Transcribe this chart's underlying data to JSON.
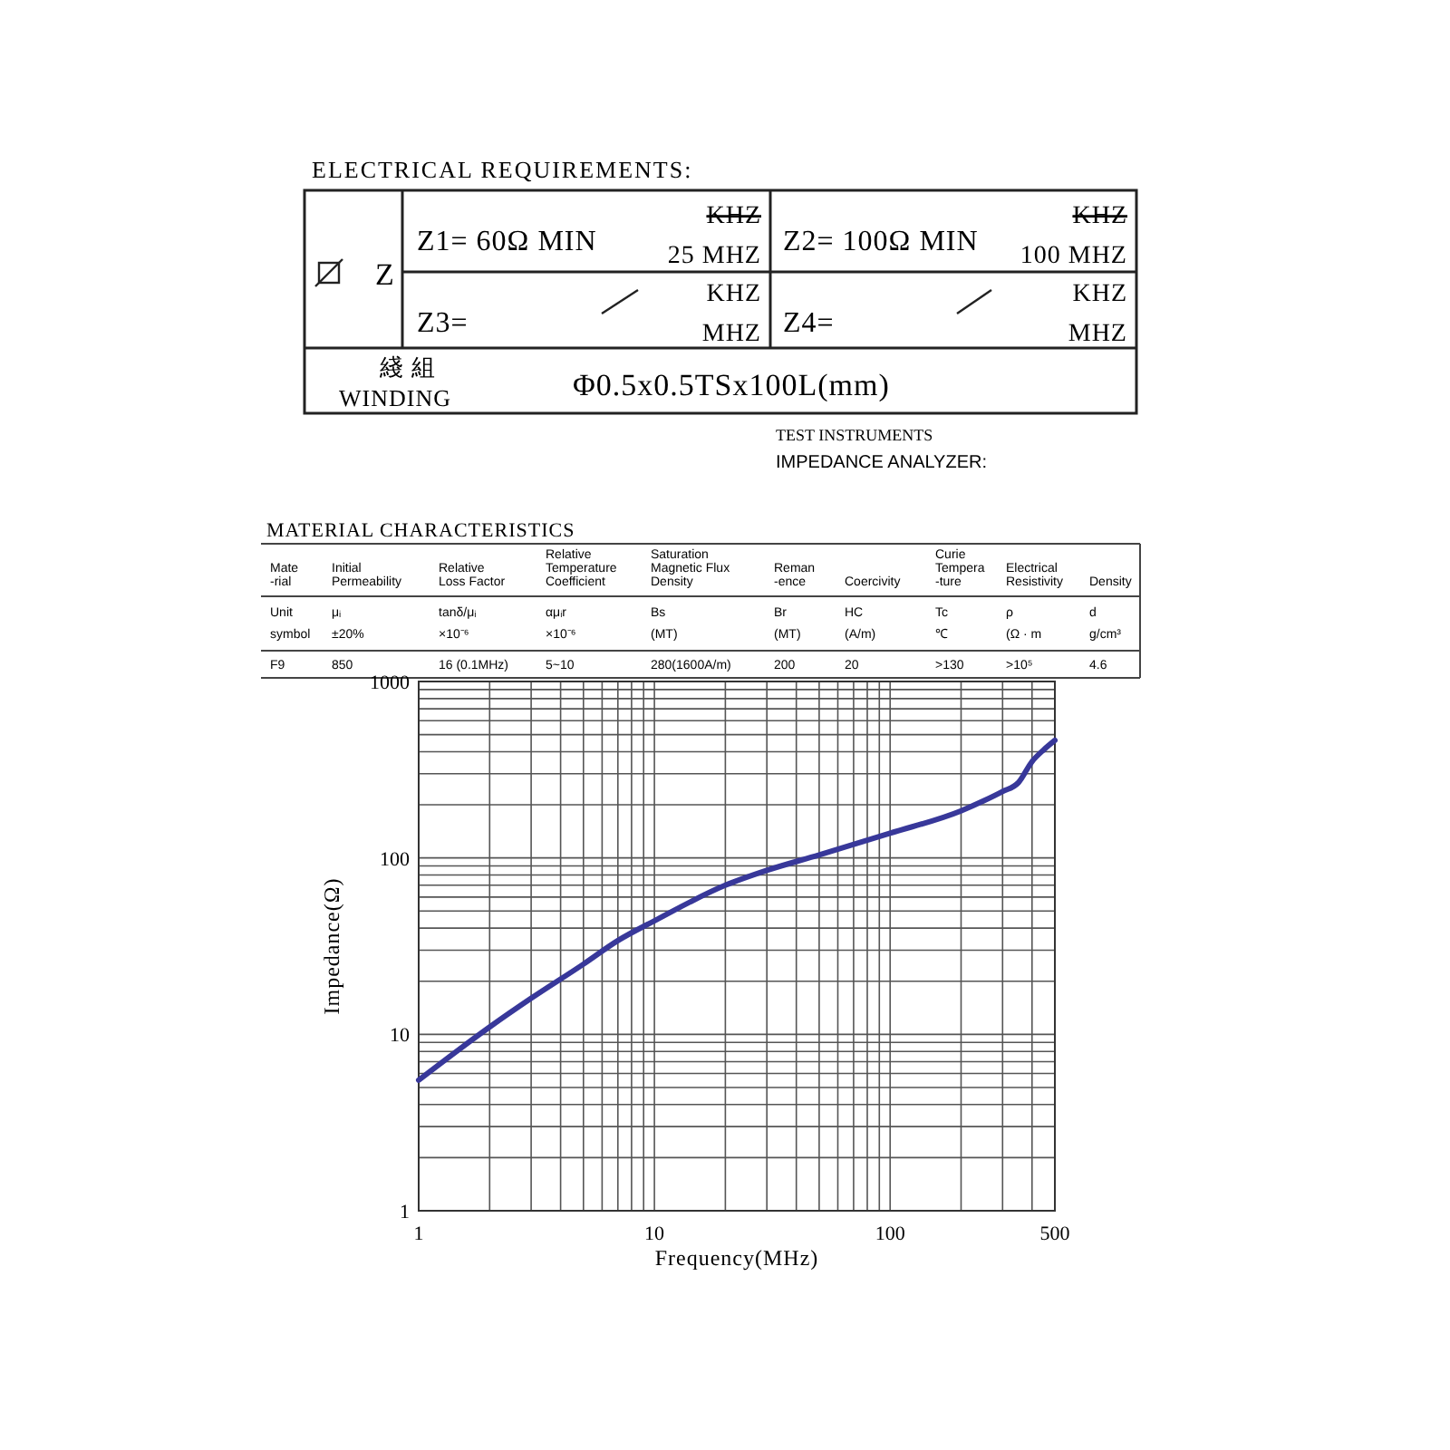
{
  "chart_data": [
    {
      "type": "other",
      "title": "ELECTRICAL REQUIREMENTS:",
      "annotations": [
        "Z",
        "Z1= 60Ω MIN",
        "KHZ",
        "25 MHZ",
        "Z2= 100Ω MIN",
        "KHZ",
        "100 MHZ",
        "Z3=",
        "KHZ",
        "MHZ",
        "Z4=",
        "KHZ",
        "MHZ",
        "綫 組",
        "WINDING",
        "Φ0.5x0.5TSx100L(mm)"
      ]
    },
    {
      "type": "other",
      "title": "TEST INSTRUMENTS",
      "annotations": [
        "IMPEDANCE ANALYZER:"
      ]
    },
    {
      "type": "other",
      "title": "MATERIAL CHARACTERISTICS",
      "annotations": [
        "Mate\n-rial",
        "Initial\nPermeability",
        "Relative\nLoss Factor",
        "Relative\nTemperature\nCoefficient",
        "Saturation\nMagnetic Flux\nDensity",
        "Reman\n-ence",
        "Coercivity",
        "Curie\nTempera\n-ture",
        "Electrical\nResistivity",
        "Density",
        "Unit",
        "μᵢ",
        "tanδ/μᵢ",
        "αμᵢr",
        "Bs",
        "Br",
        "HC",
        "Tc",
        "ρ",
        "d",
        "symbol",
        "±20%",
        "×10⁻⁶",
        "×10⁻⁶",
        "(MT)",
        "(MT)",
        "(A/m)",
        "℃",
        "(Ω · m",
        "g/cm³",
        "F9",
        "850",
        "16 (0.1MHz)",
        "5~10",
        "280(1600A/m)",
        "200",
        "20",
        ">130",
        ">10⁵",
        "4.6"
      ]
    },
    {
      "type": "line",
      "xlabel": "Frequency(MHz)",
      "ylabel": "Impedance(Ω)",
      "log": "xy",
      "grid": true,
      "xlim": [
        1,
        500
      ],
      "ylim": [
        1,
        1000
      ],
      "xticks": [
        1,
        10,
        100,
        500
      ],
      "yticks": [
        1,
        10,
        100,
        1000
      ],
      "series": [
        {
          "color": "#38389a",
          "x": [
            1,
            2,
            3,
            5,
            7,
            10,
            20,
            30,
            50,
            100,
            200,
            250,
            300,
            350,
            400,
            450,
            500
          ],
          "values": [
            5.5,
            11,
            16,
            25,
            34,
            44,
            70,
            85,
            104,
            138,
            185,
            211,
            238,
            267,
            352,
            412,
            464
          ]
        }
      ]
    }
  ]
}
